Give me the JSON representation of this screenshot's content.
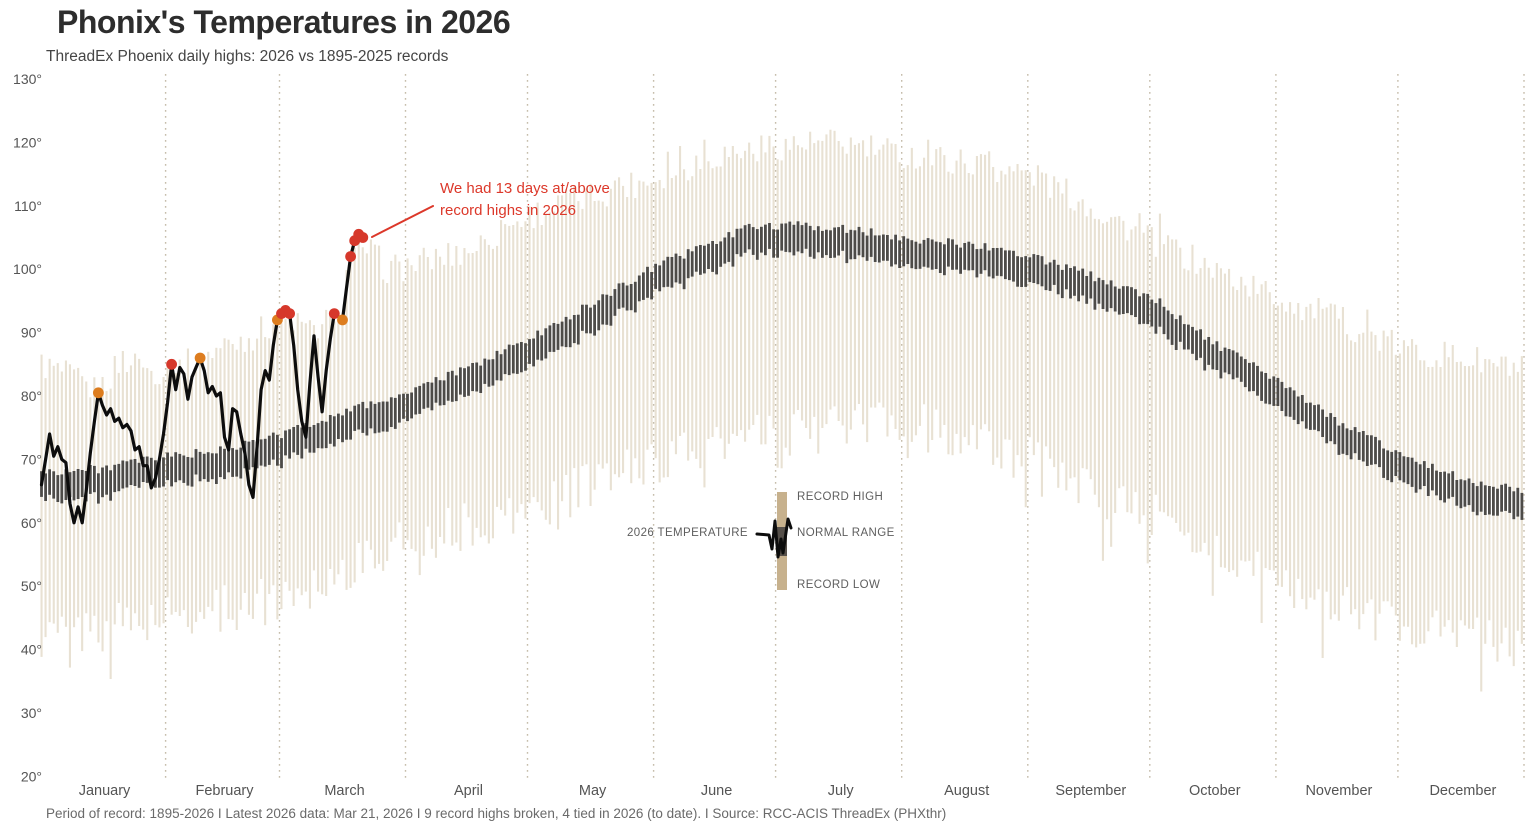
{
  "title": "Phonix's Temperatures in 2026",
  "subtitle": "ThreadEx Phoenix daily highs: 2026 vs 1895-2025 records",
  "footer": "Period of record: 1895-2026 I Latest 2026 data: Mar 21, 2026 I 9 record highs broken, 4 tied in 2026 (to date). I Source: RCC-ACIS ThreadEx (PHXthr)",
  "annotation": {
    "line1": "We had 13 days at/above",
    "line2": "record highs in 2026"
  },
  "legend": {
    "record_high": "RECORD HIGH",
    "normal_range": "NORMAL RANGE",
    "record_low": "RECORD LOW",
    "temp_2026": "2026 TEMPERATURE"
  },
  "colors": {
    "record_bar": "#e8e1d3",
    "normal_bar": "#4d4b48",
    "line_2026": "#0d0d0d",
    "broken": "#d6382b",
    "tied": "#dd7d1f",
    "annotation": "#dc382a",
    "gridline": "#c6bdac",
    "legend_bar": "#c7b18d",
    "legend_dark": "#56504a",
    "axis_label": "#545454",
    "footer": "#6a6a6a"
  },
  "chart_data": {
    "type": "bar",
    "subtype": "daily-temperature-range-with-2026-line",
    "unit": "°F",
    "title": "Phonix's Temperatures in 2026",
    "y_axis": {
      "min": 20,
      "max": 130,
      "tick_values": [
        130,
        120,
        110,
        100,
        90,
        80,
        70,
        60,
        50,
        40,
        30,
        20
      ],
      "tick_labels": [
        "130°",
        "120°",
        "110°",
        "100°",
        "90°",
        "80°",
        "70°",
        "60°",
        "50°",
        "40°",
        "30°",
        "20°"
      ]
    },
    "months": [
      "January",
      "February",
      "March",
      "April",
      "May",
      "June",
      "July",
      "August",
      "September",
      "October",
      "November",
      "December"
    ],
    "month_days": [
      31,
      28,
      31,
      30,
      31,
      30,
      31,
      31,
      30,
      31,
      30,
      31
    ],
    "record_high_anchors": [
      [
        0,
        85
      ],
      [
        7,
        83
      ],
      [
        14,
        80.5
      ],
      [
        20,
        86
      ],
      [
        26,
        84
      ],
      [
        32,
        84
      ],
      [
        39,
        86
      ],
      [
        45,
        88
      ],
      [
        52,
        89.5
      ],
      [
        58,
        92
      ],
      [
        61,
        92.5
      ],
      [
        66,
        90
      ],
      [
        72,
        92.5
      ],
      [
        76,
        101
      ],
      [
        79,
        104
      ],
      [
        85,
        100
      ],
      [
        90,
        100.5
      ],
      [
        105,
        103
      ],
      [
        120,
        108.5
      ],
      [
        135,
        111.5
      ],
      [
        151,
        114.5
      ],
      [
        166,
        118
      ],
      [
        181,
        119.5
      ],
      [
        196,
        120
      ],
      [
        212,
        118
      ],
      [
        227,
        117
      ],
      [
        243,
        115
      ],
      [
        258,
        110
      ],
      [
        273,
        104.5
      ],
      [
        288,
        100
      ],
      [
        304,
        95.5
      ],
      [
        319,
        92
      ],
      [
        334,
        87.5
      ],
      [
        349,
        86
      ],
      [
        364,
        84
      ]
    ],
    "record_low_anchors": [
      [
        0,
        42
      ],
      [
        31,
        45
      ],
      [
        59,
        48
      ],
      [
        90,
        57
      ],
      [
        120,
        62
      ],
      [
        151,
        70
      ],
      [
        181,
        74
      ],
      [
        212,
        76
      ],
      [
        243,
        70
      ],
      [
        273,
        61
      ],
      [
        304,
        50
      ],
      [
        334,
        44
      ],
      [
        364,
        41
      ]
    ],
    "normal_high_anchors": [
      [
        0,
        68
      ],
      [
        14,
        68.5
      ],
      [
        31,
        70.5
      ],
      [
        45,
        71.5
      ],
      [
        59,
        74
      ],
      [
        74,
        77.5
      ],
      [
        90,
        80.5
      ],
      [
        105,
        84.5
      ],
      [
        120,
        89
      ],
      [
        135,
        94.5
      ],
      [
        151,
        100.5
      ],
      [
        166,
        104.5
      ],
      [
        176,
        107
      ],
      [
        190,
        106.8
      ],
      [
        205,
        105.8
      ],
      [
        212,
        105
      ],
      [
        227,
        104
      ],
      [
        243,
        102.3
      ],
      [
        258,
        99
      ],
      [
        273,
        95.7
      ],
      [
        288,
        88.5
      ],
      [
        304,
        82.3
      ],
      [
        319,
        76
      ],
      [
        334,
        71
      ],
      [
        349,
        67
      ],
      [
        364,
        65
      ]
    ],
    "normal_band_height": 4.4,
    "jitter": {
      "record_high": 2.4,
      "record_low": 3.8,
      "normal": 0.7
    },
    "temps_2026": [
      66,
      70,
      74,
      70.5,
      72,
      70,
      69.5,
      63,
      60,
      62.5,
      60,
      65,
      71,
      76,
      80.5,
      78.5,
      77,
      78,
      76,
      76.5,
      75,
      75.5,
      74.5,
      71.5,
      72,
      69,
      69,
      65.5,
      67,
      70,
      74,
      79,
      85,
      81,
      84.5,
      83.5,
      79.5,
      83,
      84.5,
      86,
      84,
      80.5,
      81.5,
      80,
      80.5,
      73.5,
      71.5,
      78,
      77.5,
      74,
      71,
      66,
      64,
      72,
      81,
      84,
      82.5,
      88,
      92,
      93,
      93.5,
      93,
      88,
      81,
      76,
      73.5,
      82,
      89.5,
      83,
      77.5,
      84,
      89,
      93,
      92.5,
      92,
      97,
      102,
      104.5,
      105.5,
      105
    ],
    "temps_2026_start_day": 0,
    "record_events": [
      {
        "day": 14,
        "temp": 80.5,
        "type": "tied"
      },
      {
        "day": 32,
        "temp": 85,
        "type": "broken"
      },
      {
        "day": 39,
        "temp": 86,
        "type": "tied"
      },
      {
        "day": 58,
        "temp": 92,
        "type": "tied"
      },
      {
        "day": 59,
        "temp": 93,
        "type": "broken"
      },
      {
        "day": 60,
        "temp": 93.5,
        "type": "broken"
      },
      {
        "day": 61,
        "temp": 93,
        "type": "broken"
      },
      {
        "day": 72,
        "temp": 93,
        "type": "broken"
      },
      {
        "day": 74,
        "temp": 92,
        "type": "tied"
      },
      {
        "day": 76,
        "temp": 102,
        "type": "broken"
      },
      {
        "day": 77,
        "temp": 104.5,
        "type": "broken"
      },
      {
        "day": 78,
        "temp": 105.5,
        "type": "broken"
      },
      {
        "day": 79,
        "temp": 105,
        "type": "broken"
      }
    ],
    "stats": {
      "records_broken": 9,
      "records_tied": 4,
      "total_days_at_or_above": 13
    }
  }
}
